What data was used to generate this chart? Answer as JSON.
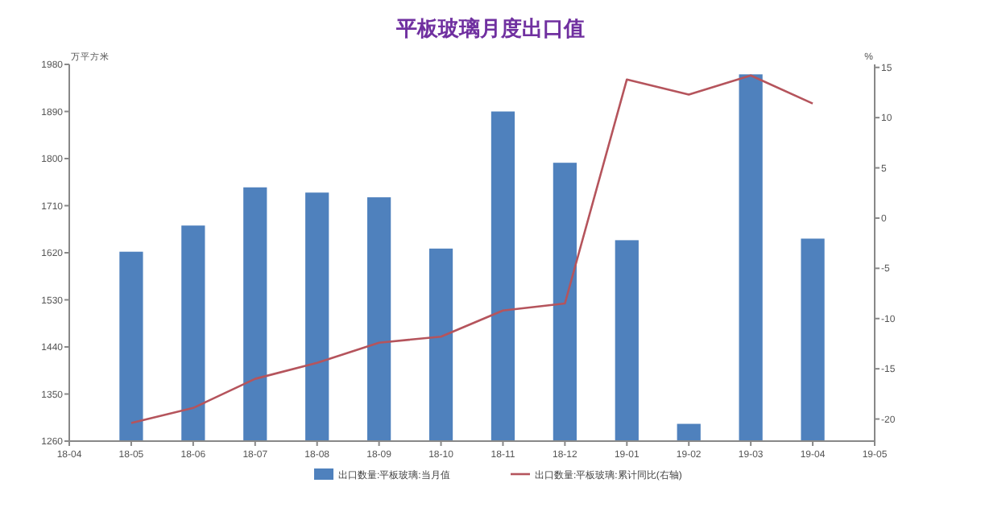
{
  "chart_data": {
    "type": "bar",
    "title": "平板玻璃月度出口值",
    "ylabel": "万平方米",
    "y2label": "%",
    "categories": [
      "18-04",
      "18-05",
      "18-06",
      "18-07",
      "18-08",
      "18-09",
      "18-10",
      "18-11",
      "18-12",
      "19-01",
      "19-02",
      "19-03",
      "19-04",
      "19-05"
    ],
    "ylim": [
      1260,
      1980
    ],
    "yticks": [
      1260,
      1350,
      1440,
      1530,
      1620,
      1710,
      1800,
      1890,
      1980
    ],
    "y2lim": [
      -22.2,
      15.3
    ],
    "y2ticks": [
      -20,
      -15,
      -10,
      -5,
      0,
      5,
      10,
      15
    ],
    "series": [
      {
        "name": "出口数量:平板玻璃:当月值",
        "color": "#4f81bd",
        "values": [
          null,
          1622,
          1672,
          1745,
          1735,
          1726,
          1628,
          1890,
          1792,
          1644,
          1293,
          1961,
          1647,
          null
        ]
      },
      {
        "name": "出口数量:平板玻璃:累计同比(右轴)",
        "type": "line",
        "axis": "y2",
        "color": "#b5545c",
        "values": [
          null,
          -20.4,
          -18.9,
          -16.0,
          -14.4,
          -12.4,
          -11.8,
          -9.2,
          -8.5,
          13.8,
          12.3,
          14.2,
          11.4,
          null
        ]
      }
    ],
    "legend": "bottom"
  }
}
